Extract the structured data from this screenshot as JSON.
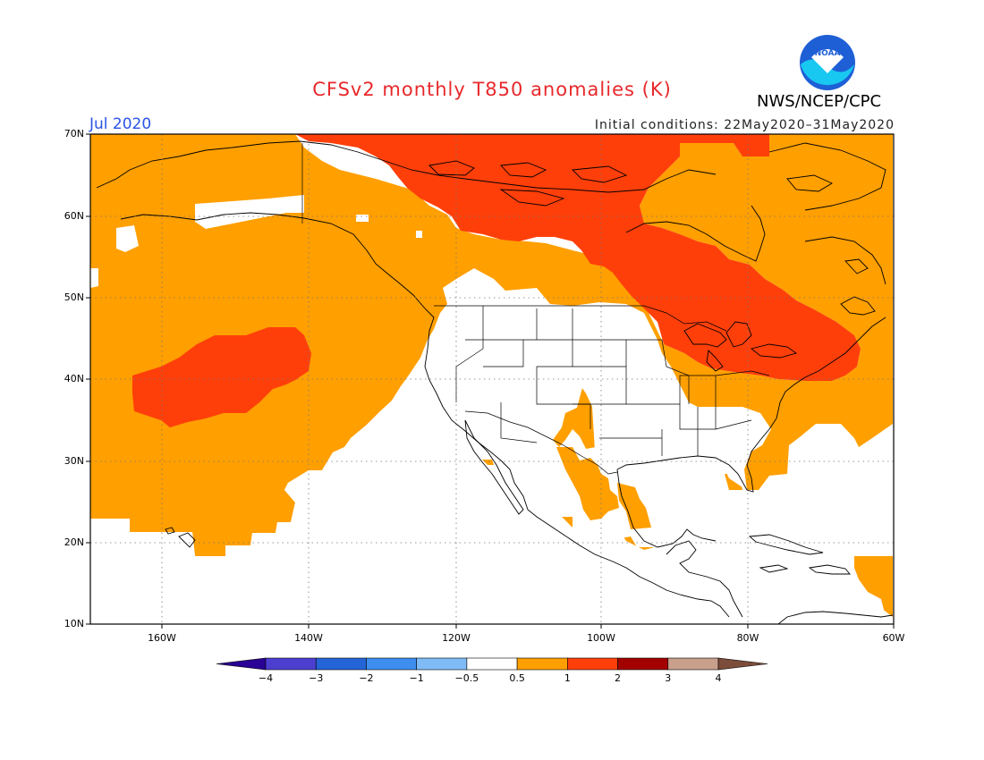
{
  "header": {
    "title": "CFSv2 monthly T850 anomalies (K)",
    "period": "Jul 2020",
    "initial_conditions": "Initial conditions: 22May2020–31May2020",
    "org": "NWS/NCEP/CPC",
    "logo_text": "NOAA"
  },
  "map": {
    "lat_labels": [
      "70N",
      "60N",
      "50N",
      "40N",
      "30N",
      "20N",
      "10N"
    ],
    "lon_labels": [
      "160W",
      "140W",
      "120W",
      "100W",
      "80W",
      "60W"
    ],
    "lat_range": [
      10,
      70
    ],
    "lon_range": [
      -171,
      -60
    ],
    "colors": {
      "anom_0.5_1": "#ff9f00",
      "anom_1_2": "#ff3f0a",
      "land_outline": "#000000",
      "grid": "#888888"
    }
  },
  "colorbar": {
    "labels": [
      "−4",
      "−3",
      "−2",
      "−1",
      "−0.5",
      "0.5",
      "1",
      "2",
      "3",
      "4"
    ],
    "colors": [
      "#2a0296",
      "#4c3fd0",
      "#2464d6",
      "#3e8ef0",
      "#7fbcf7",
      "#ffffff",
      "#ff9f00",
      "#ff3f0a",
      "#a30000",
      "#c8a08c",
      "#7c4d3b"
    ]
  }
}
